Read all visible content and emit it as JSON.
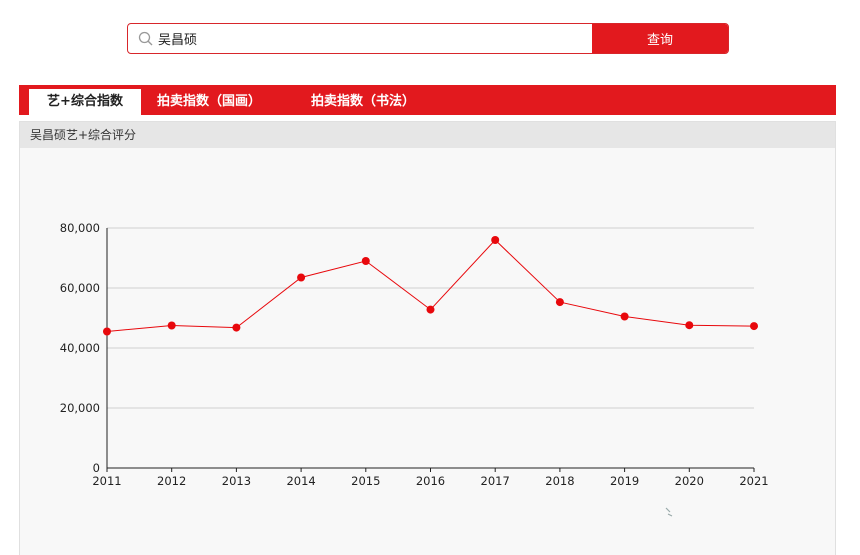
{
  "search": {
    "value": "吴昌硕",
    "button_label": "查询"
  },
  "tabs": [
    {
      "label": "艺+综合指数",
      "active": true
    },
    {
      "label": "拍卖指数（国画）",
      "active": false
    },
    {
      "label": "拍卖指数（书法）",
      "active": false
    }
  ],
  "panel": {
    "title": "吴昌硕艺+综合评分"
  },
  "colors": {
    "accent": "#e2191e",
    "series": "#e8080c"
  },
  "chart_data": {
    "type": "line",
    "x": [
      "2011",
      "2012",
      "2013",
      "2014",
      "2015",
      "2016",
      "2017",
      "2018",
      "2019",
      "2020",
      "2021"
    ],
    "series": [
      {
        "values": [
          45500,
          47500,
          46800,
          63500,
          69000,
          52800,
          76000,
          55300,
          50500,
          47600,
          47300
        ]
      }
    ],
    "yticks": [
      0,
      20000,
      40000,
      60000,
      80000
    ],
    "ytick_labels": [
      "0",
      "20,000",
      "40,000",
      "60,000",
      "80,000"
    ],
    "ylim": [
      0,
      80000
    ],
    "grid": true,
    "legend": "none"
  }
}
